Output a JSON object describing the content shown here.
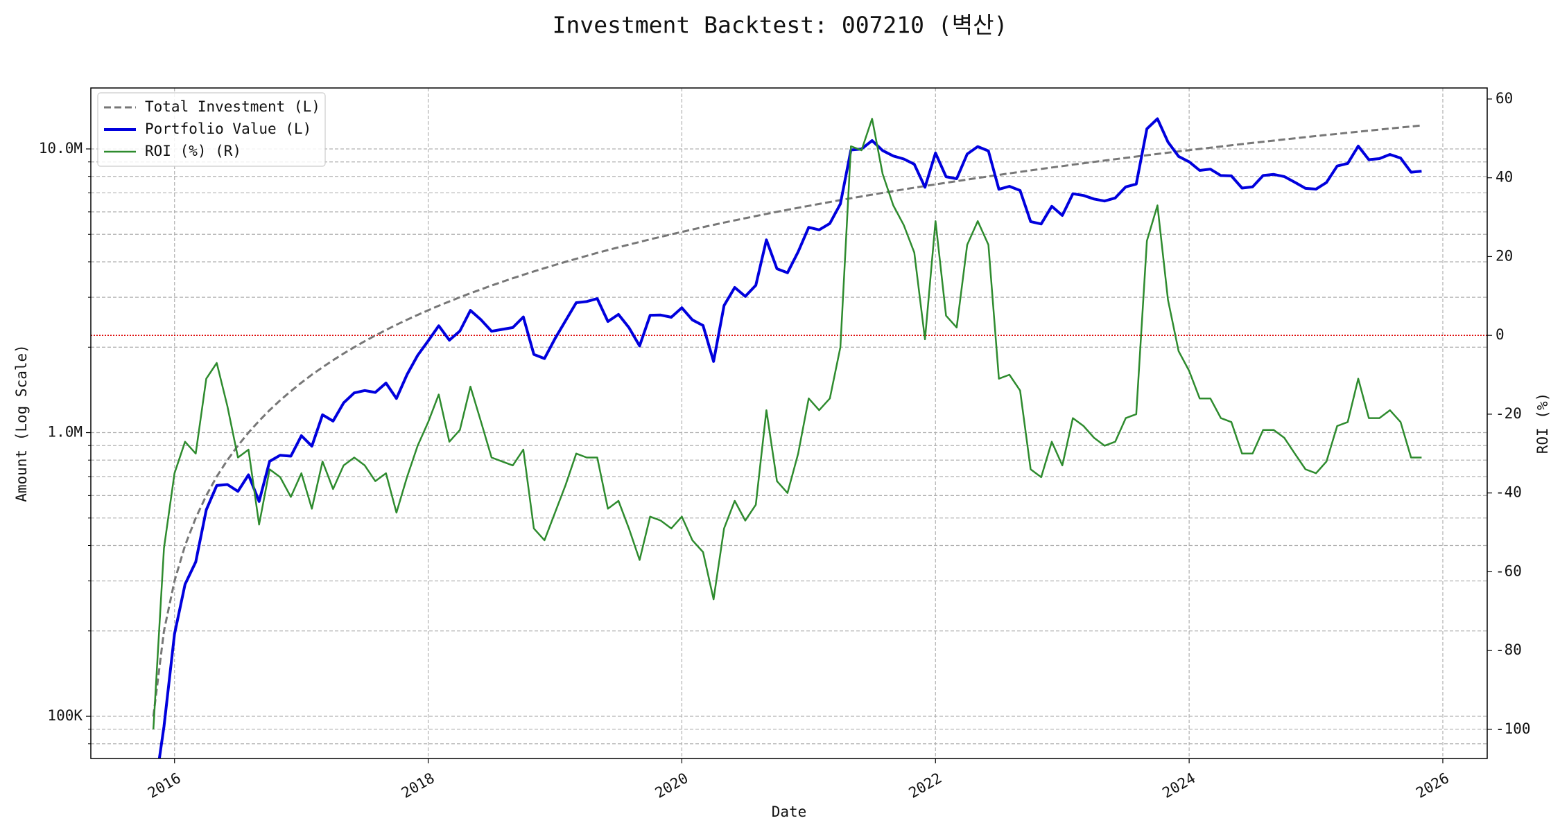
{
  "chart_data": {
    "type": "line",
    "title": "Investment Backtest: 007210 (벽산)",
    "xlabel": "Date",
    "ylabel": "Amount (Log Scale)",
    "y2label": "ROI (%)",
    "yscale": "log",
    "grid": true,
    "legend": "upper left",
    "ylabel_color": "#0000cc",
    "y2label_color": "#228b22",
    "xlim": [
      2015.34,
      2026.35
    ],
    "xticks": [
      2016,
      2018,
      2020,
      2022,
      2024,
      2026
    ],
    "ylim": [
      71000,
      16400000
    ],
    "yticks": [
      {
        "value": 100000,
        "label": "100K"
      },
      {
        "value": 1000000,
        "label": "1.0M"
      },
      {
        "value": 10000000,
        "label": "10.0M"
      }
    ],
    "yminorticks": [
      80000,
      90000,
      200000,
      300000,
      400000,
      500000,
      600000,
      700000,
      800000,
      900000,
      2000000,
      3000000,
      4000000,
      5000000,
      6000000,
      7000000,
      8000000,
      9000000
    ],
    "y2lim": [
      -107.4,
      62.8
    ],
    "y2ticks": [
      -100,
      -80,
      -60,
      -40,
      -20,
      0,
      20,
      40,
      60
    ],
    "y2_reference_line": {
      "value": 0,
      "color": "#dd0000"
    },
    "x": [
      2015.833,
      2015.917,
      2016.0,
      2016.083,
      2016.167,
      2016.25,
      2016.333,
      2016.417,
      2016.5,
      2016.583,
      2016.667,
      2016.75,
      2016.833,
      2016.917,
      2017.0,
      2017.083,
      2017.167,
      2017.25,
      2017.333,
      2017.417,
      2017.5,
      2017.583,
      2017.667,
      2017.75,
      2017.833,
      2017.917,
      2018.0,
      2018.083,
      2018.167,
      2018.25,
      2018.333,
      2018.417,
      2018.5,
      2018.583,
      2018.667,
      2018.75,
      2018.833,
      2018.917,
      2019.0,
      2019.083,
      2019.167,
      2019.25,
      2019.333,
      2019.417,
      2019.5,
      2019.583,
      2019.667,
      2019.75,
      2019.833,
      2019.917,
      2020.0,
      2020.083,
      2020.167,
      2020.25,
      2020.333,
      2020.417,
      2020.5,
      2020.583,
      2020.667,
      2020.75,
      2020.833,
      2020.917,
      2021.0,
      2021.083,
      2021.167,
      2021.25,
      2021.333,
      2021.417,
      2021.5,
      2021.583,
      2021.667,
      2021.75,
      2021.833,
      2021.917,
      2022.0,
      2022.083,
      2022.167,
      2022.25,
      2022.333,
      2022.417,
      2022.5,
      2022.583,
      2022.667,
      2022.75,
      2022.833,
      2022.917,
      2023.0,
      2023.083,
      2023.167,
      2023.25,
      2023.333,
      2023.417,
      2023.5,
      2023.583,
      2023.667,
      2023.75,
      2023.833,
      2023.917,
      2024.0,
      2024.083,
      2024.167,
      2024.25,
      2024.333,
      2024.417,
      2024.5,
      2024.583,
      2024.667,
      2024.75,
      2024.833,
      2024.917,
      2025.0,
      2025.083,
      2025.167,
      2025.25,
      2025.333,
      2025.417,
      2025.5,
      2025.583,
      2025.667,
      2025.75,
      2025.833
    ],
    "series": [
      {
        "name": "Total Investment (L)",
        "color": "#777777",
        "dash": true,
        "width": 3,
        "axis": "y",
        "values": [
          100000,
          200000,
          300000,
          400000,
          500000,
          600000,
          700000,
          800000,
          900000,
          1000000,
          1100000,
          1200000,
          1300000,
          1400000,
          1500000,
          1600000,
          1700000,
          1800000,
          1900000,
          2000000,
          2100000,
          2200000,
          2300000,
          2400000,
          2500000,
          2600000,
          2700000,
          2800000,
          2900000,
          3000000,
          3100000,
          3200000,
          3300000,
          3400000,
          3500000,
          3600000,
          3700000,
          3800000,
          3900000,
          4000000,
          4100000,
          4200000,
          4300000,
          4400000,
          4500000,
          4600000,
          4700000,
          4800000,
          4900000,
          5000000,
          5100000,
          5200000,
          5300000,
          5400000,
          5500000,
          5600000,
          5700000,
          5800000,
          5900000,
          6000000,
          6100000,
          6200000,
          6300000,
          6400000,
          6500000,
          6600000,
          6700000,
          6800000,
          6900000,
          7000000,
          7100000,
          7200000,
          7300000,
          7400000,
          7500000,
          7600000,
          7700000,
          7800000,
          7900000,
          8000000,
          8100000,
          8200000,
          8300000,
          8400000,
          8500000,
          8600000,
          8700000,
          8800000,
          8900000,
          9000000,
          9100000,
          9200000,
          9300000,
          9400000,
          9500000,
          9600000,
          9700000,
          9800000,
          9900000,
          10000000,
          10100000,
          10200000,
          10300000,
          10400000,
          10500000,
          10600000,
          10700000,
          10800000,
          10900000,
          11000000,
          11100000,
          11200000,
          11300000,
          11400000,
          11500000,
          11600000,
          11700000,
          11800000,
          11900000,
          12000000,
          12100000
        ]
      },
      {
        "name": "Portfolio Value (L)",
        "color": "#0000dd",
        "dash": false,
        "width": 4,
        "axis": "y",
        "values": [
          0,
          92000,
          195000,
          292000,
          350000,
          534000,
          651000,
          656000,
          621000,
          710000,
          572000,
          792000,
          832000,
          826000,
          975000,
          896000,
          1156000,
          1098000,
          1273000,
          1380000,
          1407000,
          1386000,
          1495000,
          1320000,
          1600000,
          1872000,
          2106000,
          2380000,
          2117000,
          2280000,
          2697000,
          2496000,
          2277000,
          2312000,
          2345000,
          2556000,
          1887000,
          1824000,
          2145000,
          2480000,
          2870000,
          2898000,
          2967000,
          2464000,
          2610000,
          2346000,
          2021000,
          2592000,
          2597000,
          2550000,
          2754000,
          2496000,
          2385000,
          1782000,
          2805000,
          3248000,
          3021000,
          3306000,
          4779000,
          3780000,
          3660000,
          4340000,
          5292000,
          5184000,
          5460000,
          6402000,
          9916000,
          9996000,
          10695000,
          9870000,
          9443000,
          9216000,
          8833000,
          7326000,
          9675000,
          7980000,
          7854000,
          9594000,
          10191000,
          9840000,
          7209000,
          7380000,
          7138000,
          5544000,
          5440000,
          6278000,
          5829000,
          6952000,
          6853000,
          6660000,
          6552000,
          6716000,
          7347000,
          7520000,
          11780000,
          12768000,
          10573000,
          9408000,
          9009000,
          8400000,
          8484000,
          8058000,
          8034000,
          7280000,
          7350000,
          8056000,
          8132000,
          7992000,
          7630000,
          7260000,
          7215000,
          7616000,
          8701000,
          8892000,
          10235000,
          9164000,
          9243000,
          9558000,
          9282000,
          8280000,
          8349000
        ]
      },
      {
        "name": "ROI (%) (R)",
        "color": "#2e8b2e",
        "dash": false,
        "width": 2.5,
        "axis": "y2",
        "values": [
          -100,
          -54,
          -35,
          -27,
          -30,
          -11,
          -7,
          -18,
          -31,
          -29,
          -48,
          -34,
          -36,
          -41,
          -35,
          -44,
          -32,
          -39,
          -33,
          -31,
          -33,
          -37,
          -35,
          -45,
          -36,
          -28,
          -22,
          -15,
          -27,
          -24,
          -13,
          -22,
          -31,
          -32,
          -33,
          -29,
          -49,
          -52,
          -45,
          -38,
          -30,
          -31,
          -31,
          -44,
          -42,
          -49,
          -57,
          -46,
          -47,
          -49,
          -46,
          -52,
          -55,
          -67,
          -49,
          -42,
          -47,
          -43,
          -19,
          -37,
          -40,
          -30,
          -16,
          -19,
          -16,
          -3,
          48,
          47,
          55,
          41,
          33,
          28,
          21,
          -1,
          29,
          5,
          2,
          23,
          29,
          23,
          -11,
          -10,
          -14,
          -34,
          -36,
          -27,
          -33,
          -21,
          -23,
          -26,
          -28,
          -27,
          -21,
          -20,
          24,
          33,
          9,
          -4,
          -9,
          -16,
          -16,
          -21,
          -22,
          -30,
          -30,
          -24,
          -24,
          -26,
          -30,
          -34,
          -35,
          -32,
          -23,
          -22,
          -11,
          -21,
          -21,
          -19,
          -22,
          -31,
          -31
        ]
      }
    ]
  }
}
